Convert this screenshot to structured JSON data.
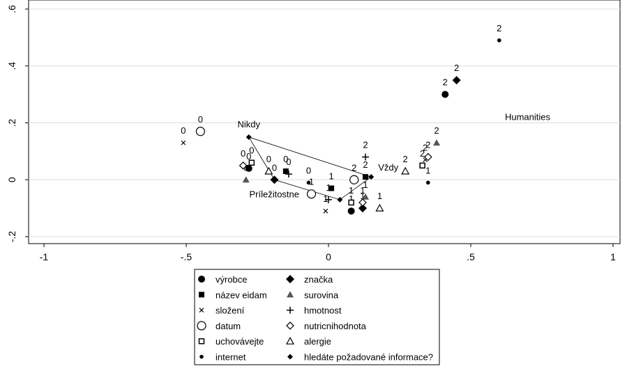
{
  "chart_data": {
    "type": "scatter",
    "title": "",
    "xlabel": "",
    "ylabel": "",
    "xlim": [
      -1,
      1
    ],
    "ylim": [
      -0.2,
      0.6
    ],
    "x_ticks": [
      -1,
      -0.5,
      0,
      0.5,
      1
    ],
    "x_tick_labels": [
      "-1",
      "-.5",
      "0",
      ".5",
      "1"
    ],
    "y_ticks": [
      -0.2,
      0,
      0.2,
      0.4,
      0.6
    ],
    "y_tick_labels": [
      "-.2",
      "0",
      ".2",
      ".4",
      ".6"
    ],
    "grid": "horizontal",
    "legend_position": "bottom",
    "series": [
      {
        "name": "výrobce",
        "marker": "filled-circle",
        "points": [
          {
            "x": -0.28,
            "y": 0.04,
            "label": "0"
          },
          {
            "x": 0.08,
            "y": -0.11,
            "label": "1"
          },
          {
            "x": 0.41,
            "y": 0.3,
            "label": "2"
          }
        ]
      },
      {
        "name": "značka",
        "marker": "filled-diamond",
        "points": [
          {
            "x": -0.19,
            "y": 0.0,
            "label": "0"
          },
          {
            "x": 0.12,
            "y": -0.1,
            "label": "1"
          },
          {
            "x": 0.45,
            "y": 0.35,
            "label": "2"
          }
        ]
      },
      {
        "name": "název eidam",
        "marker": "filled-square",
        "points": [
          {
            "x": -0.15,
            "y": 0.03,
            "label": "0"
          },
          {
            "x": 0.01,
            "y": -0.03,
            "label": "1"
          },
          {
            "x": 0.13,
            "y": 0.01,
            "label": "2"
          }
        ]
      },
      {
        "name": "surovina",
        "marker": "filled-triangle",
        "points": [
          {
            "x": -0.29,
            "y": 0.0,
            "label": "0"
          },
          {
            "x": 0.13,
            "y": -0.06,
            "label": "1"
          },
          {
            "x": 0.38,
            "y": 0.13,
            "label": "2"
          }
        ]
      },
      {
        "name": "složení",
        "marker": "x",
        "points": [
          {
            "x": -0.51,
            "y": 0.13,
            "label": "0"
          },
          {
            "x": -0.01,
            "y": -0.11,
            "label": "1"
          },
          {
            "x": 0.34,
            "y": 0.07,
            "label": "2"
          }
        ]
      },
      {
        "name": "hmotnost",
        "marker": "plus",
        "points": [
          {
            "x": -0.14,
            "y": 0.02,
            "label": "0"
          },
          {
            "x": 0.0,
            "y": -0.07,
            "label": "1"
          },
          {
            "x": 0.13,
            "y": 0.08,
            "label": "2"
          }
        ]
      },
      {
        "name": "datum",
        "marker": "hollow-circle",
        "points": [
          {
            "x": -0.45,
            "y": 0.17,
            "label": "0"
          },
          {
            "x": -0.06,
            "y": -0.05,
            "label": "1"
          },
          {
            "x": 0.09,
            "y": 0.0,
            "label": "2"
          }
        ]
      },
      {
        "name": "nutricnihodnota",
        "marker": "hollow-diamond",
        "points": [
          {
            "x": -0.3,
            "y": 0.05,
            "label": "0"
          },
          {
            "x": 0.12,
            "y": -0.08,
            "label": "1"
          },
          {
            "x": 0.35,
            "y": 0.08,
            "label": "2"
          }
        ]
      },
      {
        "name": "uchovávejte",
        "marker": "hollow-square",
        "points": [
          {
            "x": -0.27,
            "y": 0.06,
            "label": "0"
          },
          {
            "x": 0.08,
            "y": -0.08,
            "label": "1"
          },
          {
            "x": 0.33,
            "y": 0.05,
            "label": "2"
          }
        ]
      },
      {
        "name": "alergie",
        "marker": "hollow-triangle",
        "points": [
          {
            "x": -0.21,
            "y": 0.03,
            "label": "0"
          },
          {
            "x": 0.18,
            "y": -0.1,
            "label": "1"
          },
          {
            "x": 0.27,
            "y": 0.03,
            "label": "2"
          }
        ]
      },
      {
        "name": "internet",
        "marker": "small-dot",
        "points": [
          {
            "x": -0.07,
            "y": -0.01,
            "label": "0"
          },
          {
            "x": 0.35,
            "y": -0.01,
            "label": "1"
          },
          {
            "x": 0.6,
            "y": 0.49,
            "label": "2"
          }
        ]
      },
      {
        "name": "hledáte požadované informace?",
        "marker": "small-diamond",
        "points": [
          {
            "x": -0.28,
            "y": 0.15,
            "label": "Nikdy"
          },
          {
            "x": -0.19,
            "y": 0.0,
            "label": "Príležitostne"
          },
          {
            "x": 0.04,
            "y": -0.07,
            "label": ""
          },
          {
            "x": 0.15,
            "y": 0.01,
            "label": "Vždy"
          }
        ]
      }
    ],
    "polygon": [
      [
        -0.28,
        0.15
      ],
      [
        -0.19,
        0.0
      ],
      [
        0.04,
        -0.07
      ],
      [
        0.15,
        0.01
      ],
      [
        -0.28,
        0.15
      ]
    ],
    "annotations": [
      {
        "text": "Humanities",
        "x": 0.62,
        "y": 0.21
      }
    ]
  }
}
